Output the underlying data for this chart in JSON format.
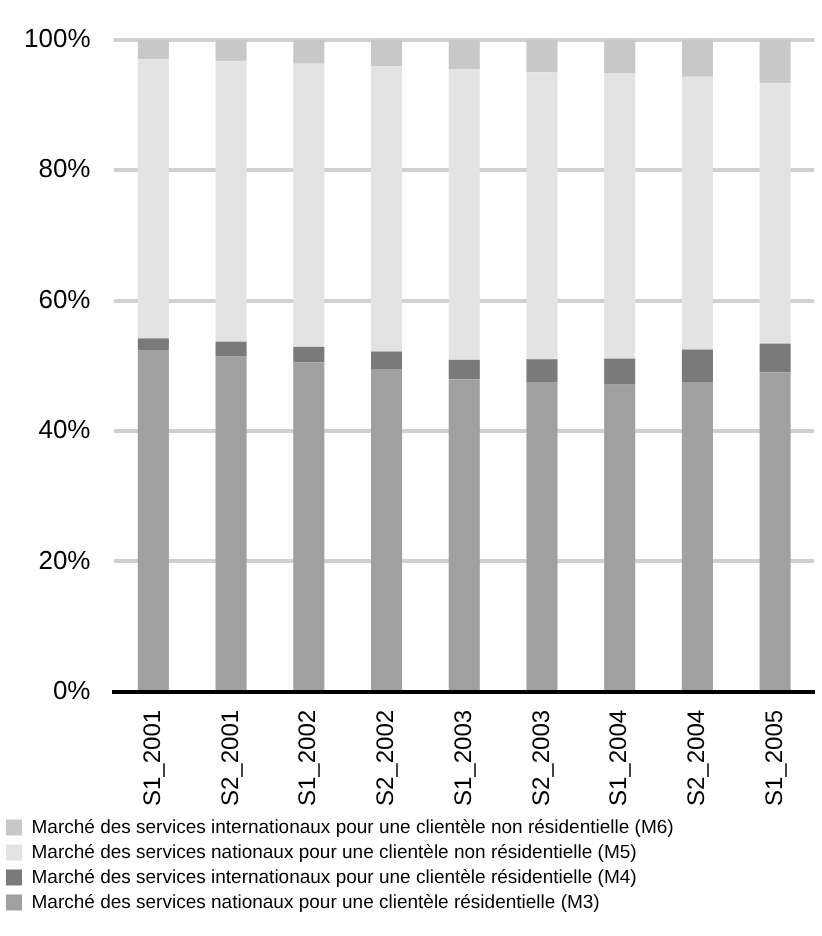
{
  "chart_data": {
    "type": "bar",
    "stacked": true,
    "categories": [
      "S1_2001",
      "S2_2001",
      "S1_2002",
      "S2_2002",
      "S1_2003",
      "S2_2003",
      "S1_2004",
      "S2_2004",
      "S1_2005"
    ],
    "series": [
      {
        "name": "Marché des services nationaux pour une clientèle résidentielle (M3)",
        "color": "#a0a0a0",
        "values": [
          52.4,
          51.4,
          50.5,
          49.5,
          47.9,
          47.5,
          47.1,
          47.5,
          49.0
        ]
      },
      {
        "name": "Marché des services internationaux pour une clientèle résidentielle (M4)",
        "color": "#7a7a7a",
        "values": [
          1.8,
          2.3,
          2.4,
          2.7,
          3.0,
          3.5,
          4.0,
          5.0,
          4.4
        ]
      },
      {
        "name": "Marché des services nationaux pour une clientèle non résidentielle (M5)",
        "color": "#e3e3e3",
        "values": [
          42.8,
          43.0,
          43.4,
          43.7,
          44.6,
          44.0,
          43.7,
          41.8,
          39.9
        ]
      },
      {
        "name": "Marché des services internationaux pour une clientèle non résidentielle (M6)",
        "color": "#c8c8c8",
        "values": [
          3.0,
          3.3,
          3.7,
          4.1,
          4.5,
          5.0,
          5.2,
          5.7,
          6.7
        ]
      }
    ],
    "ylim": [
      0,
      100
    ],
    "yticks": [
      {
        "value": 0,
        "label": "0%"
      },
      {
        "value": 20,
        "label": "20%"
      },
      {
        "value": 40,
        "label": "40%"
      },
      {
        "value": 60,
        "label": "60%"
      },
      {
        "value": 80,
        "label": "80%"
      },
      {
        "value": 100,
        "label": "100%"
      }
    ],
    "grid": "y",
    "legend": "bottom"
  }
}
